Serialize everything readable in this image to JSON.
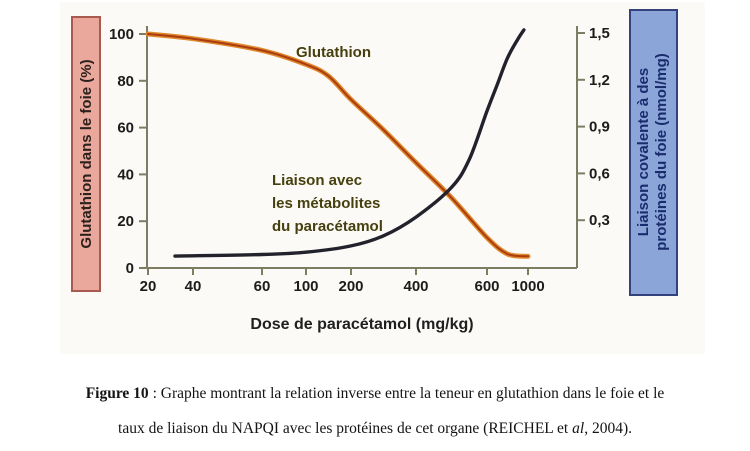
{
  "figure": {
    "left_axis_box": {
      "label": "Glutathion dans le foie (%)",
      "bg": "#e9a89b",
      "border": "#a85a4e",
      "text_color": "#2e211d"
    },
    "right_axis_box": {
      "label_line1": "Liaison covalente à des",
      "label_line2": "protéines du foie (nmol/mg)",
      "bg": "#8ba5d9",
      "border": "#33427c",
      "text_color": "#1b2c6e"
    },
    "annotations": {
      "glutathion_label": "Glutathion",
      "liaison_label_lines": [
        "Liaison avec",
        "les métabolites",
        "du paracétamol"
      ],
      "text_color": "#46400f"
    },
    "axis_color": "#7d7d64"
  },
  "chart_data": {
    "type": "line",
    "title": "",
    "xlabel": "Dose de paracétamol (mg/kg)",
    "x_scale": "logarithmic-like (scanned figure, irregular spacing)",
    "x_ticks": {
      "values": [
        20,
        40,
        60,
        100,
        200,
        400,
        600,
        1000
      ],
      "labels": [
        "20",
        "40",
        "60",
        "100",
        "200",
        "400",
        "600",
        "1000"
      ]
    },
    "y_left": {
      "label": "Glutathion dans le foie (%)",
      "range": [
        0,
        100
      ],
      "tick_values": [
        100,
        80,
        60,
        40,
        20,
        0
      ],
      "tick_labels": [
        "100",
        "80",
        "60",
        "40",
        "20",
        "0"
      ]
    },
    "y_right": {
      "label": "Liaison covalente à des protéines du foie (nmol/mg)",
      "range": [
        0,
        1.5
      ],
      "tick_values": [
        1.5,
        1.2,
        0.9,
        0.6,
        0.3
      ],
      "tick_labels": [
        "1,5",
        "1,2",
        "0,9",
        "0,6",
        "0,3"
      ]
    },
    "series": [
      {
        "name": "Glutathion",
        "axis": "left",
        "color_outer": "#e0882c",
        "color_core": "#a93c10",
        "points": [
          [
            20,
            100
          ],
          [
            40,
            98
          ],
          [
            60,
            93
          ],
          [
            100,
            87
          ],
          [
            150,
            82
          ],
          [
            200,
            72
          ],
          [
            300,
            59
          ],
          [
            400,
            45
          ],
          [
            500,
            30
          ],
          [
            600,
            13
          ],
          [
            800,
            6
          ],
          [
            1000,
            5
          ]
        ]
      },
      {
        "name": "Liaison avec les métabolites du paracétamol",
        "axis": "right",
        "color": "#22222c",
        "points": [
          [
            32,
            0.07
          ],
          [
            60,
            0.08
          ],
          [
            100,
            0.095
          ],
          [
            200,
            0.135
          ],
          [
            300,
            0.2
          ],
          [
            400,
            0.32
          ],
          [
            500,
            0.51
          ],
          [
            550,
            0.69
          ],
          [
            600,
            1.0
          ],
          [
            700,
            1.17
          ],
          [
            800,
            1.34
          ],
          [
            900,
            1.46
          ],
          [
            960,
            1.52
          ]
        ]
      }
    ],
    "legend": "labels drawn inside plot area",
    "grid": false
  },
  "caption": {
    "label": "Figure 10",
    "separator": " : ",
    "line1_rest": "Graphe montrant la relation inverse entre la teneur en glutathion dans le foie et le",
    "line2_before_italic": "taux de liaison du NAPQI avec les protéines de cet organe (REICHEL et ",
    "line2_italic": "al",
    "line2_after_italic": ", 2004)."
  }
}
